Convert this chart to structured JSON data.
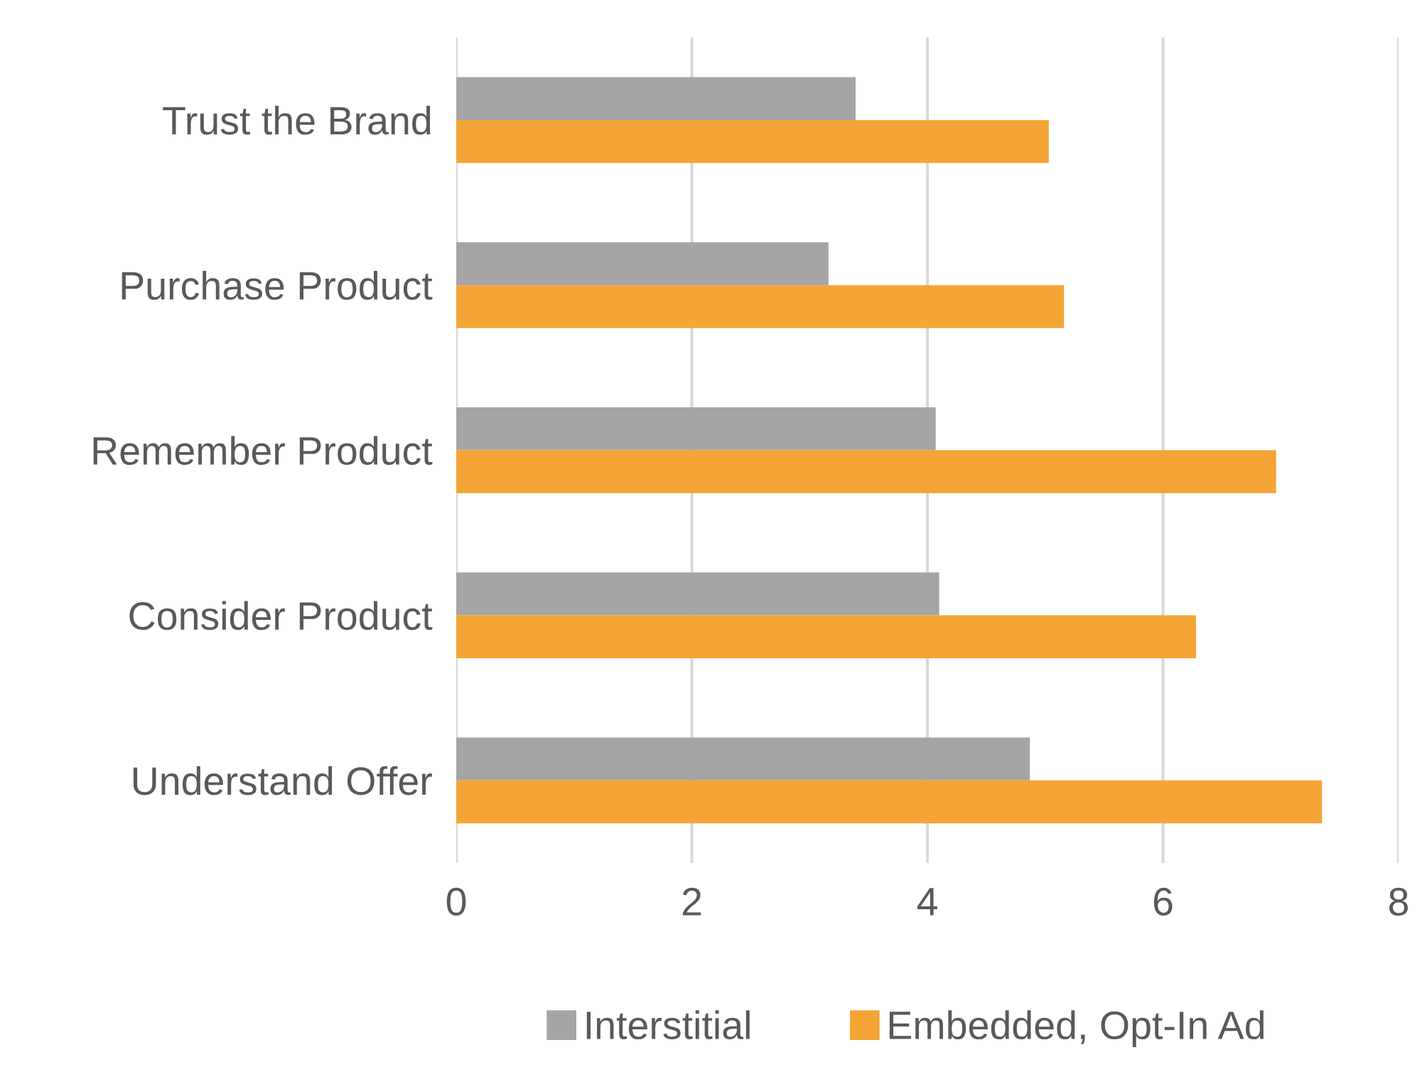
{
  "chart_data": {
    "type": "bar",
    "orientation": "horizontal",
    "categories": [
      "Trust the Brand",
      "Purchase Product",
      "Remember Product",
      "Consider Product",
      "Understand Offer"
    ],
    "series": [
      {
        "name": "Interstitial",
        "color": "#a5a5a5",
        "values": [
          3.39,
          3.16,
          4.07,
          4.1,
          4.87
        ]
      },
      {
        "name": "Embedded, Opt-In Ad",
        "color": "#f4a535",
        "values": [
          5.03,
          5.16,
          6.96,
          6.28,
          7.35
        ]
      }
    ],
    "xlim": [
      0,
      8
    ],
    "xticks": [
      0,
      2,
      4,
      6,
      8
    ],
    "grid": "x",
    "legend": "bottom"
  }
}
